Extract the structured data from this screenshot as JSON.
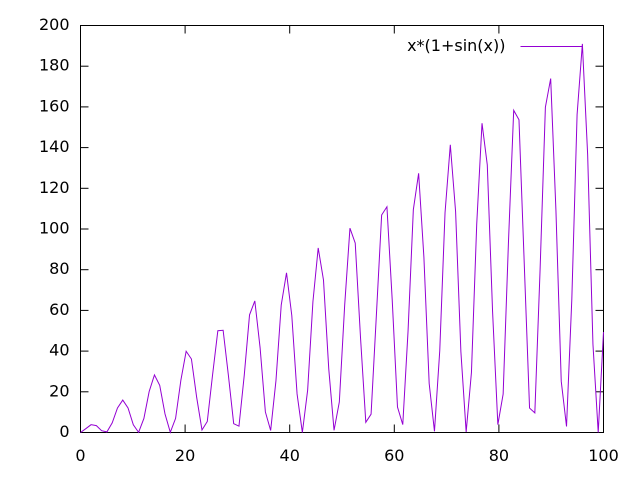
{
  "chart_data": {
    "type": "line",
    "x": [
      0,
      1.01,
      2.02,
      3.03,
      4.04,
      5.05,
      6.06,
      7.07,
      8.08,
      9.09,
      10.1,
      11.11,
      12.12,
      13.13,
      14.14,
      15.15,
      16.16,
      17.17,
      18.18,
      19.19,
      20.2,
      21.21,
      22.22,
      23.23,
      24.24,
      25.25,
      26.26,
      27.27,
      28.28,
      29.29,
      30.3,
      31.31,
      32.32,
      33.33,
      34.34,
      35.35,
      36.36,
      37.37,
      38.38,
      39.39,
      40.4,
      41.41,
      42.42,
      43.43,
      44.44,
      45.45,
      46.46,
      47.47,
      48.48,
      49.49,
      50.51,
      51.52,
      52.53,
      53.54,
      54.55,
      55.56,
      56.57,
      57.58,
      58.59,
      59.6,
      60.61,
      61.62,
      62.63,
      63.64,
      64.65,
      65.66,
      66.67,
      67.68,
      68.69,
      69.7,
      70.71,
      71.72,
      72.73,
      73.74,
      74.75,
      75.76,
      76.77,
      77.78,
      78.79,
      79.8,
      80.81,
      81.82,
      82.83,
      83.84,
      84.85,
      85.86,
      86.87,
      87.88,
      88.89,
      89.9,
      90.91,
      91.92,
      92.93,
      93.94,
      94.95,
      95.96,
      96.97,
      97.98,
      98.99,
      100
    ],
    "series": [
      {
        "name": "x*(1+sin(x))",
        "color": "#9400d3",
        "values": [
          0,
          1.87,
          3.84,
          3.37,
          0.88,
          0.29,
          4.72,
          12.08,
          15.95,
          12.07,
          3.78,
          0.07,
          6.9,
          20.16,
          28.28,
          23.16,
          9.08,
          0.1,
          6.92,
          25.63,
          39.92,
          36.11,
          17.13,
          1.25,
          5.4,
          28.27,
          50.01,
          50.25,
          28.04,
          4.35,
          3.12,
          28.1,
          57.79,
          64.68,
          41.64,
          10.09,
          1,
          25.43,
          62.65,
          78.48,
          57.5,
          18.95,
          0,
          20.8,
          64.26,
          90.69,
          74.92,
          31.16,
          1.07,
          15.02,
          62.49,
          100.4,
          93.07,
          46.69,
          5.01,
          9.01,
          57.53,
          106.86,
          110.92,
          65.21,
          12.54,
          3.86,
          49.84,
          109.48,
          127.38,
          86.12,
          24.07,
          0.59,
          40.17,
          108,
          141.4,
          108.54,
          39.75,
          0.29,
          29.47,
          102.4,
          151.98,
          131.47,
          59.44,
          3.87,
          18.87,
          92.98,
          158.32,
          153.7,
          82.69,
          12,
          9.63,
          80.35,
          159.86,
          173.93,
          108.71,
          25.15,
          2.96,
          65.43,
          156.25,
          190.97,
          136.49,
          43.43,
          0.04,
          49.36
        ]
      }
    ],
    "xlim": [
      0,
      100
    ],
    "xticks": [
      0,
      20,
      40,
      60,
      80,
      100
    ],
    "ylim": [
      0,
      200
    ],
    "yticks": [
      0,
      20,
      40,
      60,
      80,
      100,
      120,
      140,
      160,
      180,
      200
    ],
    "legend": "top-right"
  }
}
